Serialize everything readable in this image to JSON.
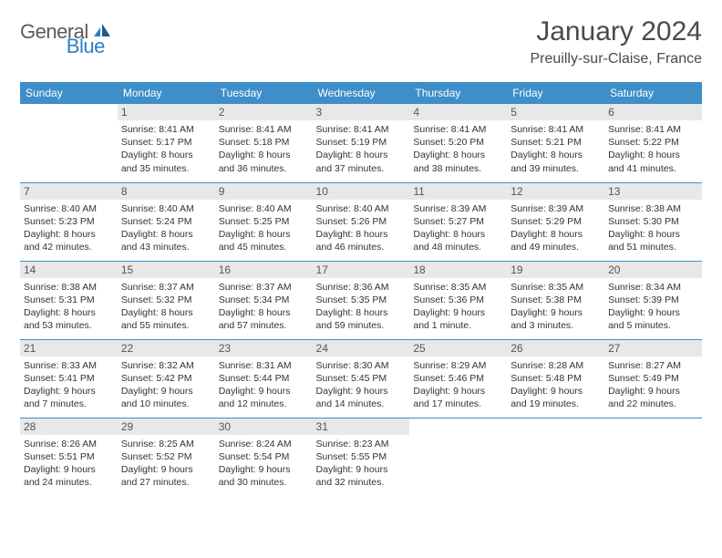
{
  "logo": {
    "part1": "General",
    "part2": "Blue"
  },
  "title": "January 2024",
  "location": "Preuilly-sur-Claise, France",
  "colors": {
    "header_bg": "#3d8ec9",
    "header_text": "#ffffff",
    "daynum_bg": "#e7e8e9",
    "row_border": "#3d8ec9",
    "logo_blue": "#2b7fc4",
    "text": "#333333"
  },
  "dayHeaders": [
    "Sunday",
    "Monday",
    "Tuesday",
    "Wednesday",
    "Thursday",
    "Friday",
    "Saturday"
  ],
  "weeks": [
    [
      null,
      {
        "d": "1",
        "sr": "8:41 AM",
        "ss": "5:17 PM",
        "dl": "Daylight: 8 hours and 35 minutes."
      },
      {
        "d": "2",
        "sr": "8:41 AM",
        "ss": "5:18 PM",
        "dl": "Daylight: 8 hours and 36 minutes."
      },
      {
        "d": "3",
        "sr": "8:41 AM",
        "ss": "5:19 PM",
        "dl": "Daylight: 8 hours and 37 minutes."
      },
      {
        "d": "4",
        "sr": "8:41 AM",
        "ss": "5:20 PM",
        "dl": "Daylight: 8 hours and 38 minutes."
      },
      {
        "d": "5",
        "sr": "8:41 AM",
        "ss": "5:21 PM",
        "dl": "Daylight: 8 hours and 39 minutes."
      },
      {
        "d": "6",
        "sr": "8:41 AM",
        "ss": "5:22 PM",
        "dl": "Daylight: 8 hours and 41 minutes."
      }
    ],
    [
      {
        "d": "7",
        "sr": "8:40 AM",
        "ss": "5:23 PM",
        "dl": "Daylight: 8 hours and 42 minutes."
      },
      {
        "d": "8",
        "sr": "8:40 AM",
        "ss": "5:24 PM",
        "dl": "Daylight: 8 hours and 43 minutes."
      },
      {
        "d": "9",
        "sr": "8:40 AM",
        "ss": "5:25 PM",
        "dl": "Daylight: 8 hours and 45 minutes."
      },
      {
        "d": "10",
        "sr": "8:40 AM",
        "ss": "5:26 PM",
        "dl": "Daylight: 8 hours and 46 minutes."
      },
      {
        "d": "11",
        "sr": "8:39 AM",
        "ss": "5:27 PM",
        "dl": "Daylight: 8 hours and 48 minutes."
      },
      {
        "d": "12",
        "sr": "8:39 AM",
        "ss": "5:29 PM",
        "dl": "Daylight: 8 hours and 49 minutes."
      },
      {
        "d": "13",
        "sr": "8:38 AM",
        "ss": "5:30 PM",
        "dl": "Daylight: 8 hours and 51 minutes."
      }
    ],
    [
      {
        "d": "14",
        "sr": "8:38 AM",
        "ss": "5:31 PM",
        "dl": "Daylight: 8 hours and 53 minutes."
      },
      {
        "d": "15",
        "sr": "8:37 AM",
        "ss": "5:32 PM",
        "dl": "Daylight: 8 hours and 55 minutes."
      },
      {
        "d": "16",
        "sr": "8:37 AM",
        "ss": "5:34 PM",
        "dl": "Daylight: 8 hours and 57 minutes."
      },
      {
        "d": "17",
        "sr": "8:36 AM",
        "ss": "5:35 PM",
        "dl": "Daylight: 8 hours and 59 minutes."
      },
      {
        "d": "18",
        "sr": "8:35 AM",
        "ss": "5:36 PM",
        "dl": "Daylight: 9 hours and 1 minute."
      },
      {
        "d": "19",
        "sr": "8:35 AM",
        "ss": "5:38 PM",
        "dl": "Daylight: 9 hours and 3 minutes."
      },
      {
        "d": "20",
        "sr": "8:34 AM",
        "ss": "5:39 PM",
        "dl": "Daylight: 9 hours and 5 minutes."
      }
    ],
    [
      {
        "d": "21",
        "sr": "8:33 AM",
        "ss": "5:41 PM",
        "dl": "Daylight: 9 hours and 7 minutes."
      },
      {
        "d": "22",
        "sr": "8:32 AM",
        "ss": "5:42 PM",
        "dl": "Daylight: 9 hours and 10 minutes."
      },
      {
        "d": "23",
        "sr": "8:31 AM",
        "ss": "5:44 PM",
        "dl": "Daylight: 9 hours and 12 minutes."
      },
      {
        "d": "24",
        "sr": "8:30 AM",
        "ss": "5:45 PM",
        "dl": "Daylight: 9 hours and 14 minutes."
      },
      {
        "d": "25",
        "sr": "8:29 AM",
        "ss": "5:46 PM",
        "dl": "Daylight: 9 hours and 17 minutes."
      },
      {
        "d": "26",
        "sr": "8:28 AM",
        "ss": "5:48 PM",
        "dl": "Daylight: 9 hours and 19 minutes."
      },
      {
        "d": "27",
        "sr": "8:27 AM",
        "ss": "5:49 PM",
        "dl": "Daylight: 9 hours and 22 minutes."
      }
    ],
    [
      {
        "d": "28",
        "sr": "8:26 AM",
        "ss": "5:51 PM",
        "dl": "Daylight: 9 hours and 24 minutes."
      },
      {
        "d": "29",
        "sr": "8:25 AM",
        "ss": "5:52 PM",
        "dl": "Daylight: 9 hours and 27 minutes."
      },
      {
        "d": "30",
        "sr": "8:24 AM",
        "ss": "5:54 PM",
        "dl": "Daylight: 9 hours and 30 minutes."
      },
      {
        "d": "31",
        "sr": "8:23 AM",
        "ss": "5:55 PM",
        "dl": "Daylight: 9 hours and 32 minutes."
      },
      null,
      null,
      null
    ]
  ],
  "labels": {
    "sunrise": "Sunrise:",
    "sunset": "Sunset:"
  }
}
